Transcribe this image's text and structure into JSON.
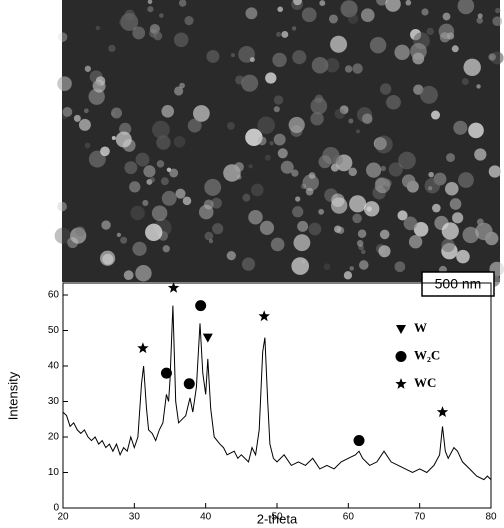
{
  "image": {
    "scale_bar": "500 nm"
  },
  "chart_data": {
    "type": "line",
    "xlabel": "2-theta",
    "ylabel": "Intensity",
    "xlim": [
      20,
      80
    ],
    "xticks": [
      20,
      30,
      40,
      50,
      60,
      70,
      80
    ],
    "ylim": [
      0,
      60
    ],
    "yticks": [
      0,
      10,
      20,
      30,
      40,
      50,
      60
    ],
    "color": "#000000",
    "x": [
      20,
      20.5,
      21,
      21.5,
      22,
      22.5,
      23,
      23.5,
      24,
      24.5,
      25,
      25.5,
      26,
      26.5,
      27,
      27.5,
      28,
      28.5,
      29,
      29.5,
      30,
      30.5,
      31,
      31.3,
      31.7,
      32,
      32.5,
      33,
      33.5,
      34,
      34.5,
      34.8,
      35,
      35.4,
      35.8,
      36.2,
      36.7,
      37.2,
      37.8,
      38.2,
      38.7,
      39.2,
      39.6,
      40,
      40.3,
      40.7,
      41.2,
      42,
      42.5,
      43,
      44,
      44.5,
      45,
      46,
      46.5,
      47,
      47.5,
      48,
      48.3,
      48.7,
      49,
      49.5,
      50,
      51,
      52,
      53,
      54,
      55,
      56,
      57,
      58,
      59,
      60,
      61,
      61.5,
      62,
      63,
      64,
      65,
      66,
      67,
      68,
      69,
      70,
      71,
      72,
      72.8,
      73.2,
      73.6,
      74,
      74.8,
      75.3,
      76,
      77,
      78,
      79,
      79.5,
      80
    ],
    "values": [
      27,
      26,
      23,
      24,
      22,
      21,
      22,
      20,
      19,
      20,
      18,
      19,
      17,
      18,
      16,
      18,
      15,
      17,
      16,
      20,
      17,
      20,
      35,
      40,
      28,
      22,
      21,
      19,
      22,
      24,
      32,
      30,
      36,
      57,
      30,
      24,
      25,
      26,
      31,
      27,
      34,
      52,
      38,
      32,
      42,
      28,
      20,
      18,
      17,
      15,
      16,
      14,
      15,
      13,
      17,
      15,
      22,
      44,
      48,
      30,
      18,
      14,
      13,
      15,
      12,
      13,
      12,
      14,
      11,
      12,
      11,
      13,
      14,
      15,
      16,
      14,
      12,
      13,
      16,
      13,
      12,
      11,
      10,
      11,
      10,
      12,
      15,
      23,
      16,
      14,
      17,
      16,
      13,
      11,
      9,
      8,
      9,
      8
    ],
    "legend": "upper right",
    "markers": [
      {
        "name": "W",
        "shape": "triangle",
        "color": "#000000",
        "x": [
          40.3
        ],
        "values": [
          48
        ]
      },
      {
        "name": "W₂C",
        "shape": "circle",
        "color": "#000000",
        "x": [
          34.5,
          37.7,
          39.3,
          61.5
        ],
        "values": [
          38,
          35,
          57,
          19
        ]
      },
      {
        "name": "WC",
        "shape": "star",
        "color": "#000000",
        "x": [
          31.2,
          35.5,
          48.2,
          73.2
        ],
        "values": [
          45,
          62,
          54,
          27
        ]
      }
    ]
  }
}
